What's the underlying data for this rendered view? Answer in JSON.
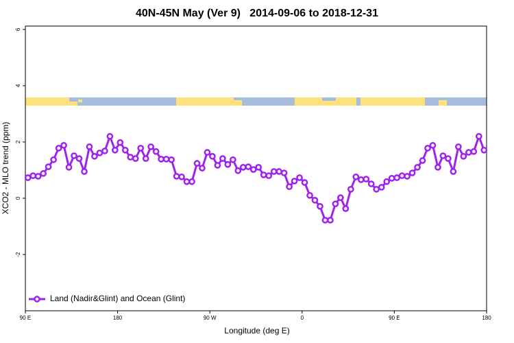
{
  "chart_data": {
    "type": "line",
    "title": "40N-45N May (Ver 9)   2014-09-06 to 2018-12-31",
    "x_label": "Longitude (deg E)",
    "y_label": "XCO2 - MLO trend (ppm)",
    "xlim": [
      90,
      540
    ],
    "ylim": [
      -4,
      6.12
    ],
    "xticks": [
      {
        "value": 90,
        "label": "90 E"
      },
      {
        "value": 180,
        "label": "180"
      },
      {
        "value": 270,
        "label": "90 W"
      },
      {
        "value": 360,
        "label": "0"
      },
      {
        "value": 450,
        "label": "90 E"
      },
      {
        "value": 540,
        "label": "180"
      }
    ],
    "yticks": [
      -2,
      0,
      2,
      4,
      6
    ],
    "legend_position": "bottomleft",
    "x": [
      92.5,
      97.5,
      102.5,
      107.5,
      112.5,
      117.5,
      122.5,
      127.5,
      132.5,
      137.5,
      142.5,
      147.5,
      152.5,
      157.5,
      162.5,
      167.5,
      172.5,
      177.5,
      182.5,
      187.5,
      192.5,
      197.5,
      202.5,
      207.5,
      212.5,
      217.5,
      222.5,
      227.5,
      232.5,
      237.5,
      242.5,
      247.5,
      252.5,
      257.5,
      262.5,
      267.5,
      272.5,
      277.5,
      282.5,
      287.5,
      292.5,
      297.5,
      302.5,
      307.5,
      312.5,
      317.5,
      322.5,
      327.5,
      332.5,
      337.5,
      342.5,
      347.5,
      352.5,
      357.5,
      362.5,
      367.5,
      372.5,
      377.5,
      382.5,
      387.5,
      392.5,
      397.5,
      402.5,
      407.5,
      412.5,
      417.5,
      422.5,
      427.5,
      432.5,
      437.5,
      442.5,
      447.5,
      452.5,
      457.5,
      462.5,
      467.5,
      472.5,
      477.5,
      482.5,
      487.5,
      492.5,
      497.5,
      502.5,
      507.5,
      512.5,
      517.5,
      522.5,
      527.5,
      532.5,
      537.5
    ],
    "series": [
      {
        "name": "Land (Nadir&Glint) and Ocean (Glint)",
        "color": "#a020f0",
        "values": [
          0.73,
          0.8,
          0.78,
          0.88,
          1.12,
          1.37,
          1.78,
          1.88,
          1.1,
          1.51,
          1.41,
          0.95,
          1.83,
          1.49,
          1.61,
          1.68,
          2.2,
          1.71,
          1.98,
          1.71,
          1.46,
          1.41,
          1.78,
          1.41,
          1.83,
          1.66,
          1.39,
          1.39,
          1.37,
          0.78,
          0.76,
          0.59,
          0.59,
          1.24,
          1.07,
          1.63,
          1.49,
          1.17,
          1.41,
          1.2,
          1.37,
          0.98,
          1.1,
          1.12,
          1.02,
          1.1,
          0.83,
          0.8,
          0.95,
          0.95,
          0.9,
          0.41,
          0.61,
          0.73,
          0.56,
          0.1,
          -0.07,
          -0.29,
          -0.78,
          -0.78,
          -0.2,
          0.02,
          -0.37,
          0.32,
          0.76,
          0.66,
          0.68,
          0.51,
          0.32,
          0.39,
          0.59,
          0.71,
          0.73,
          0.8,
          0.78,
          0.9,
          1.1,
          1.34,
          1.78,
          1.88,
          1.1,
          1.51,
          1.41,
          0.95,
          1.83,
          1.49,
          1.63,
          1.66,
          2.2,
          1.71
        ]
      }
    ]
  }
}
